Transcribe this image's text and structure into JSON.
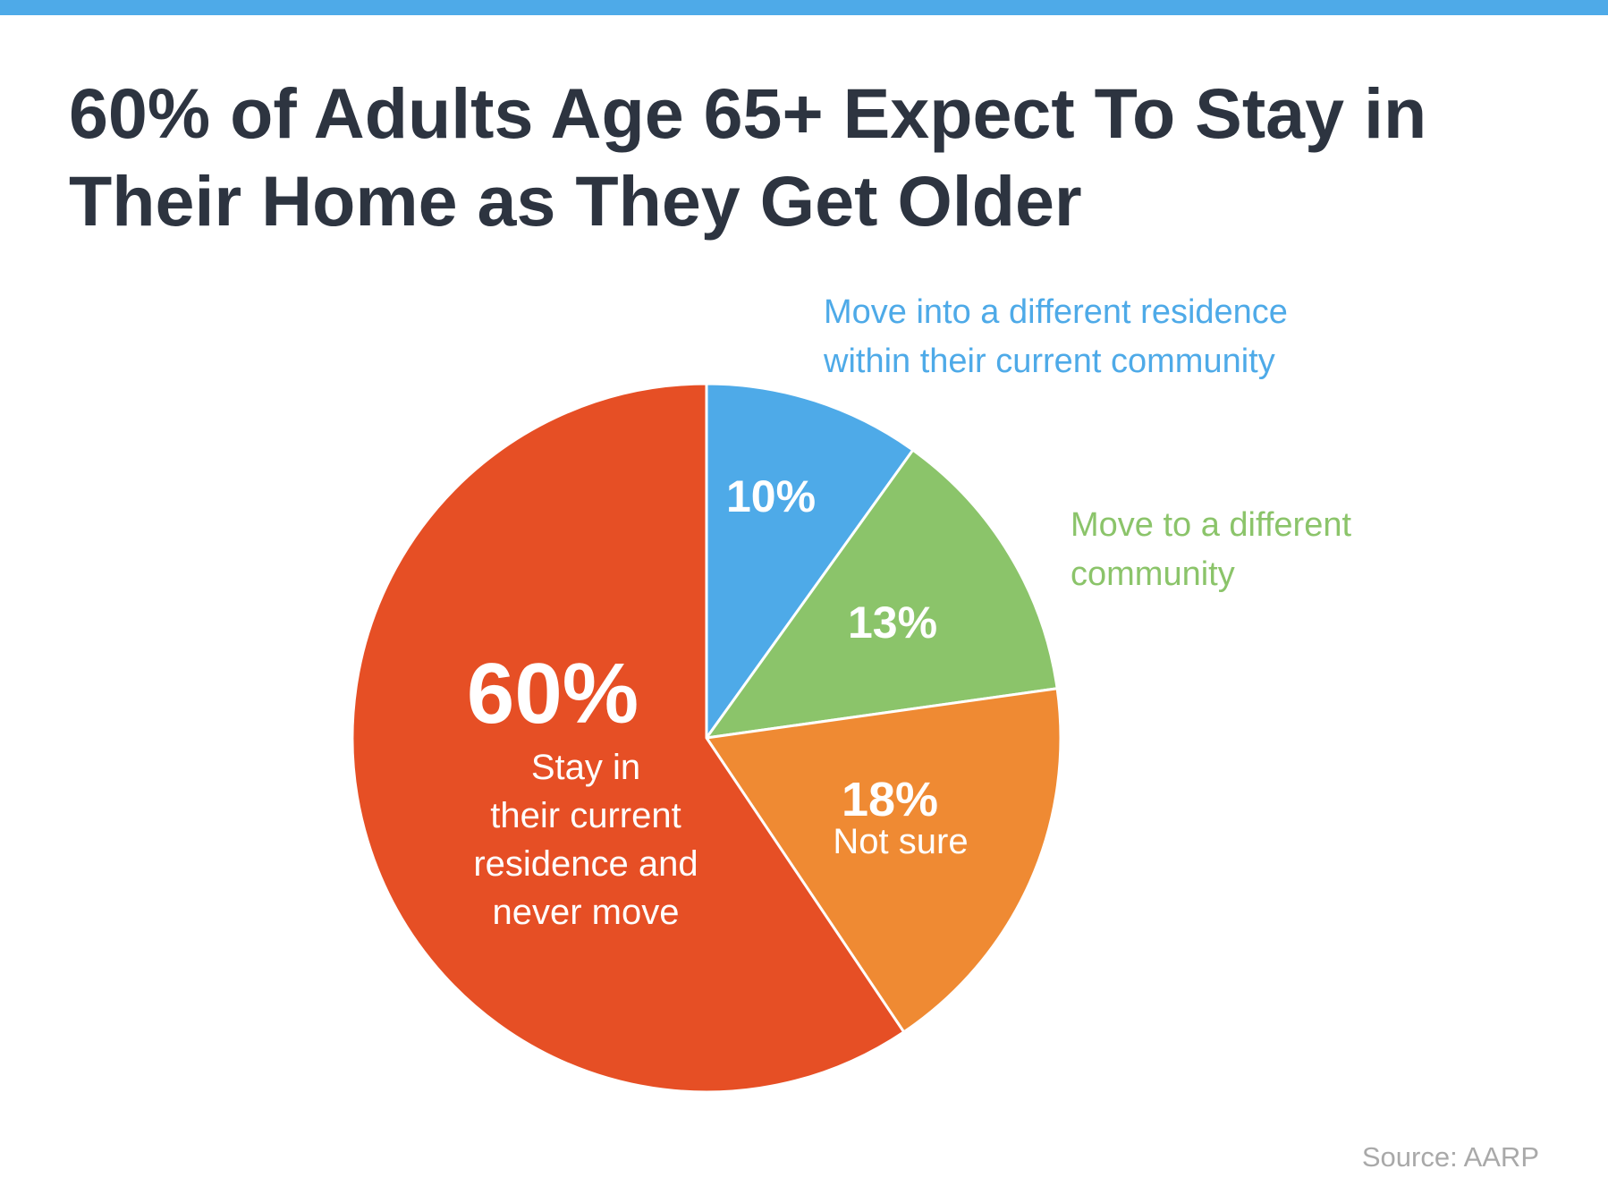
{
  "header": {
    "title_line1": "60% of Adults Age 65+ Expect To Stay in",
    "title_line2": "Their Home as They Get Older"
  },
  "source": "Source: AARP",
  "chart_data": {
    "type": "pie",
    "title": "60% of Adults Age 65+ Expect To Stay in Their Home as They Get Older",
    "slices": [
      {
        "name": "different-residence",
        "value": 10,
        "value_label": "10%",
        "label_lines": [],
        "callout_lines": [
          "Move into a different residence",
          "within their current community"
        ],
        "color": "#4eaae8"
      },
      {
        "name": "different-community",
        "value": 13,
        "value_label": "13%",
        "label_lines": [],
        "callout_lines": [
          "Move to a different",
          "community"
        ],
        "color": "#8bc46a"
      },
      {
        "name": "not-sure",
        "value": 18,
        "value_label": "18%",
        "label_lines": [
          "Not sure"
        ],
        "callout_lines": [],
        "color": "#ef8a33"
      },
      {
        "name": "stay",
        "value": 60,
        "value_label": "60%",
        "label_lines": [
          "Stay in",
          "their current",
          "residence and",
          "never move"
        ],
        "callout_lines": [],
        "color": "#e64f25"
      }
    ],
    "legend": "none (callout labels)",
    "source": "Source: AARP"
  }
}
